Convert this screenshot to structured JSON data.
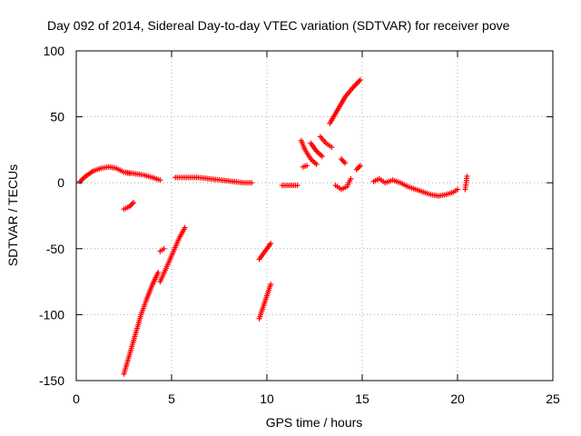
{
  "chart_data": {
    "type": "scatter",
    "title": "Day 092 of 2014, Sidereal Day-to-day VTEC variation (SDTVAR) for receiver pove",
    "xlabel": "GPS time / hours",
    "ylabel": "SDTVAR / TECUs",
    "xlim": [
      0,
      25
    ],
    "ylim": [
      -150,
      100
    ],
    "xticks": [
      0,
      5,
      10,
      15,
      20,
      25
    ],
    "yticks": [
      -150,
      -100,
      -50,
      0,
      50,
      100
    ],
    "grid": true,
    "marker": "+",
    "color": "#ff0000",
    "segments": [
      {
        "points": [
          [
            0.2,
            1
          ],
          [
            0.5,
            5
          ],
          [
            0.9,
            9
          ],
          [
            1.3,
            11
          ],
          [
            1.7,
            12
          ],
          [
            2.1,
            11
          ],
          [
            2.5,
            8
          ],
          [
            2.8,
            7
          ]
        ]
      },
      {
        "points": [
          [
            2.6,
            8
          ],
          [
            3.0,
            7
          ],
          [
            3.5,
            6
          ],
          [
            4.0,
            4
          ],
          [
            4.4,
            2
          ]
        ]
      },
      {
        "points": [
          [
            5.2,
            4
          ],
          [
            5.8,
            4
          ],
          [
            6.4,
            4
          ],
          [
            7.0,
            3
          ],
          [
            7.6,
            2
          ],
          [
            8.2,
            1
          ],
          [
            8.8,
            0
          ],
          [
            9.2,
            0
          ]
        ]
      },
      {
        "points": [
          [
            10.8,
            -2
          ],
          [
            11.2,
            -2
          ],
          [
            11.6,
            -2
          ]
        ]
      },
      {
        "points": [
          [
            16.2,
            0
          ],
          [
            16.6,
            2
          ],
          [
            17.0,
            0
          ],
          [
            17.4,
            -3
          ],
          [
            17.8,
            -5
          ],
          [
            18.2,
            -7
          ],
          [
            18.6,
            -9
          ],
          [
            19.0,
            -10
          ],
          [
            19.4,
            -9
          ],
          [
            19.8,
            -7
          ],
          [
            20.0,
            -5
          ]
        ]
      },
      {
        "points": [
          [
            20.4,
            -5
          ],
          [
            20.45,
            0
          ],
          [
            20.5,
            5
          ]
        ]
      },
      {
        "points": [
          [
            2.5,
            -20
          ],
          [
            2.8,
            -18
          ],
          [
            3.0,
            -15
          ]
        ]
      },
      {
        "points": [
          [
            2.5,
            -145
          ],
          [
            2.8,
            -130
          ],
          [
            3.1,
            -115
          ],
          [
            3.4,
            -100
          ],
          [
            3.7,
            -88
          ],
          [
            4.0,
            -77
          ],
          [
            4.3,
            -68
          ]
        ]
      },
      {
        "points": [
          [
            4.4,
            -75
          ],
          [
            4.8,
            -62
          ],
          [
            5.1,
            -52
          ],
          [
            5.4,
            -42
          ],
          [
            5.7,
            -34
          ]
        ]
      },
      {
        "points": [
          [
            4.4,
            -52
          ],
          [
            4.6,
            -50
          ]
        ]
      },
      {
        "points": [
          [
            9.6,
            -103
          ],
          [
            9.9,
            -90
          ],
          [
            10.2,
            -77
          ]
        ]
      },
      {
        "points": [
          [
            9.6,
            -58
          ],
          [
            9.9,
            -52
          ],
          [
            10.2,
            -46
          ]
        ]
      },
      {
        "points": [
          [
            11.8,
            32
          ],
          [
            12.0,
            25
          ],
          [
            12.3,
            18
          ],
          [
            12.6,
            14
          ]
        ]
      },
      {
        "points": [
          [
            12.3,
            30
          ],
          [
            12.6,
            24
          ],
          [
            12.9,
            20
          ]
        ]
      },
      {
        "points": [
          [
            12.8,
            35
          ],
          [
            13.1,
            30
          ],
          [
            13.4,
            27
          ]
        ]
      },
      {
        "points": [
          [
            11.9,
            12
          ],
          [
            12.1,
            13
          ]
        ]
      },
      {
        "points": [
          [
            13.3,
            45
          ],
          [
            13.7,
            55
          ],
          [
            14.1,
            65
          ],
          [
            14.5,
            72
          ],
          [
            14.9,
            78
          ]
        ]
      },
      {
        "points": [
          [
            13.6,
            -2
          ],
          [
            13.9,
            -5
          ],
          [
            14.2,
            -3
          ],
          [
            14.4,
            3
          ]
        ]
      },
      {
        "points": [
          [
            13.9,
            18
          ],
          [
            14.1,
            15
          ]
        ]
      },
      {
        "points": [
          [
            14.7,
            10
          ],
          [
            14.9,
            13
          ]
        ]
      },
      {
        "points": [
          [
            15.6,
            1
          ],
          [
            15.9,
            3
          ],
          [
            16.1,
            1
          ]
        ]
      }
    ]
  }
}
